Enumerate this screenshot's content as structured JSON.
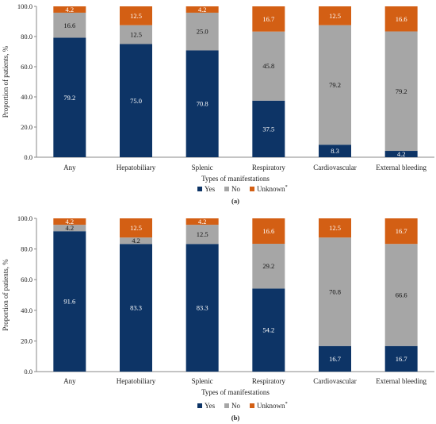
{
  "colors": {
    "yes": "#0d3466",
    "no": "#a6a6a6",
    "unknown": "#d35f14",
    "axis": "#888888"
  },
  "chart_data": [
    {
      "type": "bar",
      "stacked": true,
      "panel_label": "(a)",
      "categories": [
        "Any",
        "Hepatobiliary",
        "Splenic",
        "Respiratory",
        "Cardiovascular",
        "External bleeding"
      ],
      "xlabel": "Types of manifestations",
      "ylabel": "Proportion of patients, %",
      "ylim": [
        0,
        100
      ],
      "yticks": [
        "0.0",
        "20.0",
        "40.0",
        "60.0",
        "80.0",
        "100.0"
      ],
      "legend": {
        "position": "bottom",
        "entries": [
          "Yes",
          "No",
          "Unknown"
        ],
        "unknown_superscript": "*"
      },
      "series": [
        {
          "name": "Yes",
          "color_key": "yes",
          "values": [
            79.2,
            75.0,
            70.8,
            37.5,
            8.3,
            4.2
          ],
          "labels": [
            "79.2",
            "75.0",
            "70.8",
            "37.5",
            "8.3",
            "4.2"
          ]
        },
        {
          "name": "No",
          "color_key": "no",
          "values": [
            16.6,
            12.5,
            25.0,
            45.8,
            79.2,
            79.2
          ],
          "labels": [
            "16.6",
            "12.5",
            "25.0",
            "45.8",
            "79.2",
            "79.2"
          ]
        },
        {
          "name": "Unknown",
          "color_key": "unknown",
          "values": [
            4.2,
            12.5,
            4.2,
            16.7,
            12.5,
            16.6
          ],
          "labels": [
            "4.2",
            "12.5",
            "4.2",
            "16.7",
            "12.5",
            "16.6"
          ]
        }
      ]
    },
    {
      "type": "bar",
      "stacked": true,
      "panel_label": "(b)",
      "categories": [
        "Any",
        "Hepatobiliary",
        "Splenic",
        "Respiratory",
        "Cardiovascular",
        "External bleeding"
      ],
      "xlabel": "Types of manifestations",
      "ylabel": "Proportion of patients, %",
      "ylim": [
        0,
        100
      ],
      "yticks": [
        "0.0",
        "20.0",
        "40.0",
        "60.0",
        "80.0",
        "100.0"
      ],
      "legend": {
        "position": "bottom",
        "entries": [
          "Yes",
          "No",
          "Unknown"
        ],
        "unknown_superscript": "*"
      },
      "series": [
        {
          "name": "Yes",
          "color_key": "yes",
          "values": [
            91.6,
            83.3,
            83.3,
            54.2,
            16.7,
            16.7
          ],
          "labels": [
            "91.6",
            "83.3",
            "83.3",
            "54.2",
            "16.7",
            "16.7"
          ]
        },
        {
          "name": "No",
          "color_key": "no",
          "values": [
            4.2,
            4.2,
            12.5,
            29.2,
            70.8,
            66.6
          ],
          "labels": [
            "4.2",
            "4.2",
            "12.5",
            "29.2",
            "70.8",
            "66.6"
          ]
        },
        {
          "name": "Unknown",
          "color_key": "unknown",
          "values": [
            4.2,
            12.5,
            4.2,
            16.6,
            12.5,
            16.7
          ],
          "labels": [
            "4.2",
            "12.5",
            "4.2",
            "16.6",
            "12.5",
            "16.7"
          ]
        }
      ]
    }
  ]
}
